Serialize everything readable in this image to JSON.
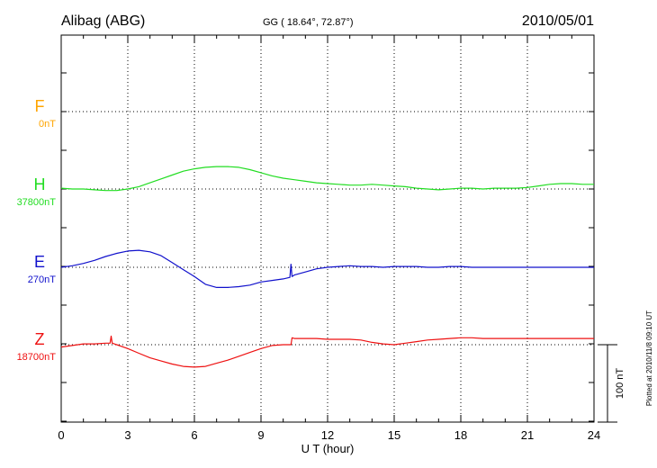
{
  "header": {
    "station": "Alibag (ABG)",
    "coords": "GG ( 18.64°,  72.87°)",
    "date": "2010/05/01"
  },
  "side_note": "Plotted at 2010/11/8 09:10 UT",
  "scale_label": "100 nT",
  "chart_data": {
    "type": "line",
    "xlabel": "U T (hour)",
    "xlim": [
      0,
      24
    ],
    "x_ticks": [
      0,
      3,
      6,
      9,
      12,
      15,
      18,
      21,
      24
    ],
    "x_tick_labels": [
      "0",
      "3",
      "6",
      "9",
      "12",
      "15",
      "18",
      "21",
      "24"
    ],
    "scale_nT": 100,
    "grid": true,
    "series": [
      {
        "name": "F",
        "baseline": "0nT",
        "color": "#ffa500",
        "x": [],
        "values": []
      },
      {
        "name": "H",
        "baseline": "37800nT",
        "color": "#22dd22",
        "x": [
          0,
          0.5,
          1,
          1.5,
          2,
          2.5,
          3,
          3.5,
          4,
          4.5,
          5,
          5.5,
          6,
          6.5,
          7,
          7.5,
          8,
          8.5,
          9,
          9.5,
          10,
          10.5,
          11,
          11.5,
          12,
          12.5,
          13,
          13.5,
          14,
          14.5,
          15,
          15.5,
          16,
          16.5,
          17,
          17.5,
          18,
          18.5,
          19,
          19.5,
          20,
          20.5,
          21,
          21.5,
          22,
          22.5,
          23,
          23.5,
          24
        ],
        "values": [
          1,
          0,
          0,
          -1,
          -2,
          -2,
          0,
          3,
          8,
          13,
          18,
          23,
          26,
          28,
          29,
          29,
          28,
          25,
          21,
          17,
          14,
          12,
          10,
          8,
          7,
          6,
          5,
          5,
          6,
          5,
          4,
          3,
          1,
          0,
          -1,
          0,
          1,
          1,
          0,
          1,
          1,
          1,
          2,
          4,
          6,
          7,
          7,
          6,
          6
        ]
      },
      {
        "name": "E",
        "baseline": "270nT",
        "color": "#1111cc",
        "x": [
          0,
          0.5,
          1,
          1.5,
          2,
          2.5,
          3,
          3.5,
          4,
          4.5,
          5,
          5.5,
          6,
          6.5,
          7,
          7.5,
          8,
          8.5,
          9,
          9.5,
          10,
          10.3,
          10.35,
          10.4,
          10.5,
          11,
          11.5,
          12,
          12.5,
          13,
          13.5,
          14,
          14.5,
          15,
          15.5,
          16,
          16.5,
          17,
          17.5,
          18,
          18.5,
          19,
          19.5,
          20,
          20.5,
          21,
          21.5,
          22,
          22.5,
          23,
          23.5,
          24
        ],
        "values": [
          0,
          2,
          5,
          9,
          14,
          18,
          21,
          22,
          20,
          15,
          6,
          -3,
          -12,
          -22,
          -26,
          -26,
          -25,
          -23,
          -19,
          -17,
          -15,
          -13,
          4,
          -12,
          -10,
          -6,
          -2,
          0,
          1,
          2,
          1,
          1,
          0,
          1,
          1,
          1,
          0,
          0,
          1,
          1,
          0,
          0,
          0,
          0,
          0,
          0,
          0,
          0,
          0,
          0,
          0,
          0
        ]
      },
      {
        "name": "Z",
        "baseline": "18700nT",
        "color": "#ee1111",
        "x": [
          0,
          0.5,
          1,
          1.5,
          2,
          2.2,
          2.25,
          2.3,
          2.5,
          3,
          3.5,
          4,
          4.5,
          5,
          5.5,
          6,
          6.5,
          7,
          7.5,
          8,
          8.5,
          9,
          9.5,
          10,
          10.35,
          10.4,
          10.5,
          11,
          11.5,
          12,
          12.5,
          13,
          13.5,
          14,
          14.5,
          15,
          15.5,
          16,
          16.5,
          17,
          17.5,
          18,
          18.5,
          19,
          19.5,
          20,
          20.5,
          21,
          21.5,
          22,
          22.5,
          23,
          23.5,
          24
        ],
        "values": [
          -3,
          -1,
          1,
          1,
          2,
          2,
          11,
          2,
          0,
          -5,
          -11,
          -17,
          -21,
          -25,
          -28,
          -29,
          -28,
          -24,
          -20,
          -15,
          -10,
          -5,
          -1,
          0,
          0,
          9,
          8,
          8,
          8,
          7,
          7,
          7,
          6,
          3,
          1,
          0,
          2,
          4,
          6,
          7,
          8,
          9,
          9,
          8,
          8,
          8,
          8,
          8,
          8,
          8,
          8,
          8,
          8,
          8
        ]
      }
    ]
  }
}
